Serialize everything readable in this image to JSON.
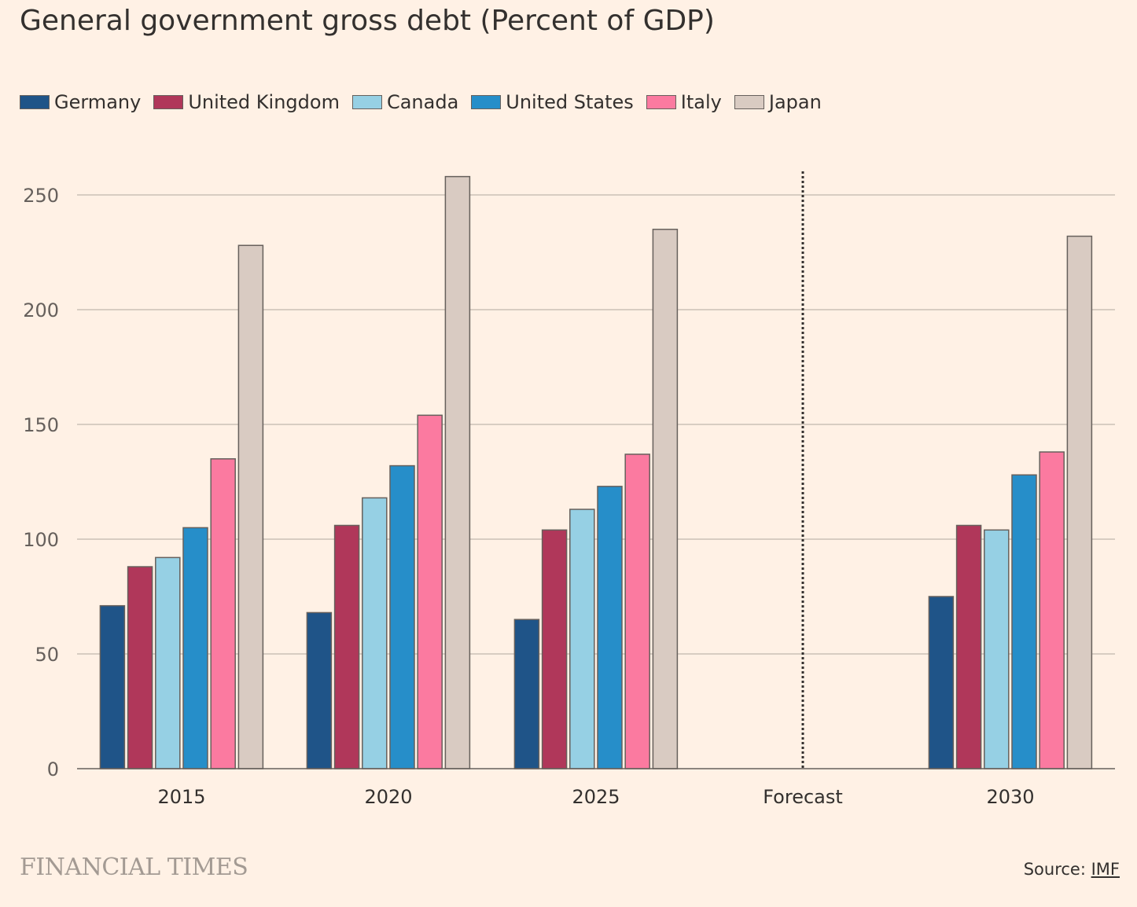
{
  "chart_data": {
    "type": "bar",
    "title": "General government gross debt (Percent of GDP)",
    "xlabel": "",
    "ylabel": "",
    "ylim": [
      0,
      260
    ],
    "yticks": [
      0,
      50,
      100,
      150,
      200,
      250
    ],
    "grid": true,
    "legend_position": "top-left",
    "categories": [
      "2015",
      "2020",
      "2025",
      "Forecast",
      "2030"
    ],
    "annotation": "Forecast divider (dotted line)",
    "series": [
      {
        "name": "Germany",
        "color": "#1f5488",
        "values": [
          71,
          68,
          65,
          null,
          75
        ]
      },
      {
        "name": "United Kingdom",
        "color": "#b0375a",
        "values": [
          88,
          106,
          104,
          null,
          106
        ]
      },
      {
        "name": "Canada",
        "color": "#96d0e4",
        "values": [
          92,
          118,
          113,
          null,
          104
        ]
      },
      {
        "name": "United States",
        "color": "#268ec9",
        "values": [
          105,
          132,
          123,
          null,
          128
        ]
      },
      {
        "name": "Italy",
        "color": "#fb7aa0",
        "values": [
          135,
          154,
          137,
          null,
          138
        ]
      },
      {
        "name": "Japan",
        "color": "#d9cbc2",
        "values": [
          228,
          258,
          235,
          null,
          232
        ]
      }
    ]
  },
  "footer": {
    "brand": "FINANCIAL TIMES",
    "source_label": "Source: ",
    "source_link": "IMF"
  }
}
